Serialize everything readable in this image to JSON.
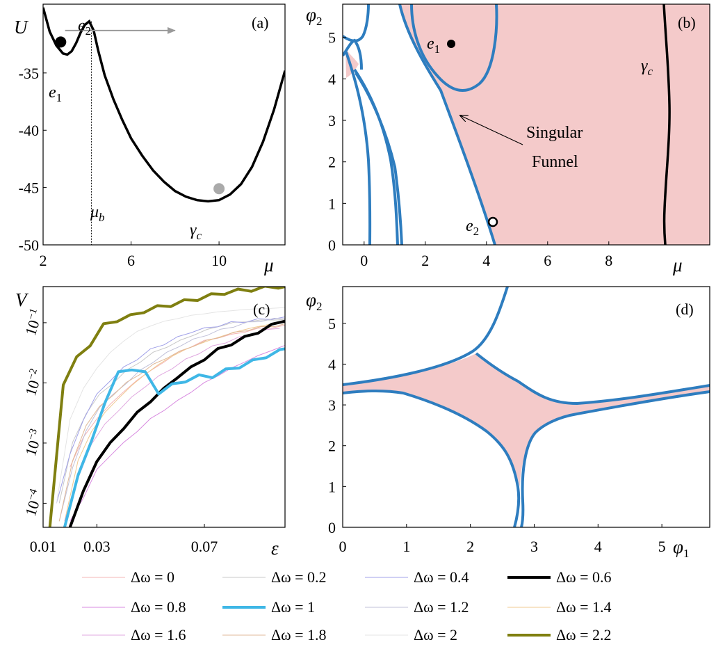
{
  "figure": {
    "panels": [
      "(a)",
      "(b)",
      "(c)",
      "(d)"
    ]
  },
  "chart_data": [
    {
      "panel": "(a)",
      "type": "line",
      "title": "",
      "xlabel": "μ",
      "ylabel": "U",
      "xlim": [
        2,
        13
      ],
      "ylim": [
        -50,
        -29
      ],
      "xticks": [
        "2",
        "6",
        "10"
      ],
      "yticks": [
        "-35",
        "-40",
        "-45",
        "-50"
      ],
      "series": [
        {
          "name": "U(μ)",
          "color": "#000000",
          "x": [
            2.0,
            2.3,
            2.6,
            2.9,
            3.1,
            3.3,
            3.5,
            3.7,
            3.9,
            4.1,
            4.3,
            4.5,
            4.8,
            5.2,
            5.6,
            6.0,
            6.5,
            7.0,
            7.5,
            8.0,
            8.5,
            9.0,
            9.5,
            10.0,
            10.5,
            11.0,
            11.5,
            12.0,
            12.5,
            13.0
          ],
          "y": [
            -29.3,
            -31.4,
            -32.6,
            -33.3,
            -33.4,
            -33.1,
            -32.4,
            -31.5,
            -30.8,
            -30.5,
            -31.3,
            -33.0,
            -35.2,
            -37.3,
            -39.1,
            -40.7,
            -42.2,
            -43.5,
            -44.5,
            -45.3,
            -45.8,
            -46.1,
            -46.2,
            -46.1,
            -45.6,
            -44.7,
            -43.2,
            -41.0,
            -38.2,
            -34.8
          ]
        }
      ],
      "markers": [
        {
          "name": "e1-point",
          "label": "e",
          "subscript": "1",
          "x": 2.8,
          "y": -32.3,
          "color": "#000000"
        },
        {
          "name": "e2-label",
          "label": "e",
          "subscript": "2",
          "x": 4.2,
          "y": -30.5
        },
        {
          "name": "gamma-c-point",
          "label": "γ",
          "subscript": "c",
          "x": 10.0,
          "y": -45.1,
          "color": "#aaaaaa"
        }
      ],
      "barrier": {
        "label": "μ",
        "subscript": "b",
        "x": 4.2
      },
      "arrow": {
        "x_from": 3.0,
        "x_to": 8.0,
        "y": -31.3,
        "color": "#999999"
      }
    },
    {
      "panel": "(b)",
      "type": "contour",
      "title": "",
      "xlabel": "μ",
      "ylabel": "φ2",
      "xlim": [
        -0.7,
        11.3
      ],
      "ylim": [
        0,
        5.8
      ],
      "xticks": [
        "0",
        "2",
        "4",
        "6",
        "8"
      ],
      "yticks": [
        "0",
        "1",
        "2",
        "3",
        "4",
        "5"
      ],
      "fill_color": "#f4caca",
      "line_color": "#2e7dbf",
      "annotation": {
        "line1": "Singular",
        "line2": "Funnel",
        "arrow_to": [
          3.2,
          3.2
        ]
      },
      "points": [
        {
          "label": "e",
          "subscript": "1",
          "x": 2.9,
          "y": 5.25,
          "style": "filled"
        },
        {
          "label": "e",
          "subscript": "2",
          "x": 4.3,
          "y": 0.6,
          "style": "open"
        }
      ],
      "curve_label": {
        "label": "γ",
        "subscript": "c",
        "x": 10.0
      }
    },
    {
      "panel": "(c)",
      "type": "line",
      "title": "",
      "xlabel": "ε",
      "ylabel": "V",
      "xscale": "linear",
      "yscale": "log",
      "xlim": [
        0.01,
        0.1
      ],
      "ylim_exp": [
        -4.4,
        -0.4
      ],
      "xticks": [
        "0.01",
        "0.03",
        "0.07"
      ],
      "yticks": [
        {
          "base": "10",
          "exp": "−1",
          "value": -1
        },
        {
          "base": "10",
          "exp": "−2",
          "value": -2
        },
        {
          "base": "10",
          "exp": "−3",
          "value": -3
        },
        {
          "base": "10",
          "exp": "−4",
          "value": -4
        }
      ],
      "x_grid": [
        0.015,
        0.02,
        0.025,
        0.03,
        0.035,
        0.04,
        0.045,
        0.05,
        0.055,
        0.06,
        0.065,
        0.07,
        0.075,
        0.08,
        0.085,
        0.09,
        0.095,
        0.1
      ],
      "series": [
        {
          "name": "Δω = 0",
          "color": "#f4b4b4",
          "width": 1,
          "start": 0.02,
          "y": [
            -3.4,
            -2.9,
            -2.6,
            -2.35,
            -2.15,
            -1.95,
            -1.8,
            -1.65,
            -1.5,
            -1.4,
            -1.3,
            -1.25,
            -1.2,
            -1.15,
            -1.1,
            -1.08,
            -1.05
          ]
        },
        {
          "name": "Δω = 0.2",
          "color": "#c8c8c8",
          "width": 1,
          "start": 0.016,
          "y": [
            -4.0,
            -3.0,
            -2.5,
            -2.2,
            -2.0,
            -1.8,
            -1.65,
            -1.5,
            -1.4,
            -1.3,
            -1.2,
            -1.12,
            -1.05,
            -1.0,
            -0.98,
            -0.96,
            -0.95,
            -0.95
          ]
        },
        {
          "name": "Δω = 0.4",
          "color": "#a0a0e8",
          "width": 1,
          "start": 0.015,
          "y": [
            -4.0,
            -3.2,
            -2.6,
            -2.2,
            -1.95,
            -1.75,
            -1.6,
            -1.45,
            -1.35,
            -1.25,
            -1.15,
            -1.1,
            -1.05,
            -1.0,
            -0.98,
            -0.95,
            -0.93,
            -0.92
          ]
        },
        {
          "name": "Δω = 0.6",
          "color": "#000000",
          "width": 4,
          "start": 0.02,
          "y": [
            -4.4,
            -3.8,
            -3.3,
            -3.0,
            -2.75,
            -2.5,
            -2.3,
            -2.1,
            -1.9,
            -1.75,
            -1.6,
            -1.45,
            -1.35,
            -1.25,
            -1.15,
            -1.05,
            -0.95
          ]
        },
        {
          "name": "Δω = 0.8",
          "color": "#d88ae0",
          "width": 1,
          "start": 0.02,
          "y": [
            -4.3,
            -3.9,
            -3.45,
            -3.2,
            -3.0,
            -2.8,
            -2.6,
            -2.45,
            -2.3,
            -2.15,
            -2.0,
            -1.88,
            -1.76,
            -1.65,
            -1.55,
            -1.46,
            -1.38
          ]
        },
        {
          "name": "Δω = 1",
          "color": "#3fb7e6",
          "width": 4,
          "start": 0.018,
          "y": [
            -4.4,
            -3.5,
            -3.0,
            -2.3,
            -1.85,
            -1.75,
            -1.85,
            -2.15,
            -2.05,
            -1.95,
            -1.9,
            -1.88,
            -1.8,
            -1.72,
            -1.65,
            -1.55,
            -1.48,
            -1.38
          ]
        },
        {
          "name": "Δω = 1.2",
          "color": "#c0c0d8",
          "width": 1,
          "start": 0.016,
          "y": [
            -4.3,
            -3.4,
            -2.8,
            -2.4,
            -2.2,
            -2.0,
            -1.8,
            -1.65,
            -1.5,
            -1.38,
            -1.28,
            -1.2,
            -1.12,
            -1.06,
            -1.0,
            -0.97,
            -0.94,
            -0.92
          ]
        },
        {
          "name": "Δω = 1.4",
          "color": "#f0c890",
          "width": 1,
          "start": 0.018,
          "y": [
            -4.3,
            -3.3,
            -2.8,
            -2.5,
            -2.25,
            -2.05,
            -1.85,
            -1.7,
            -1.55,
            -1.45,
            -1.35,
            -1.28,
            -1.2,
            -1.14,
            -1.08,
            -1.04,
            -1.0
          ]
        },
        {
          "name": "Δω = 1.6",
          "color": "#e0a8e0",
          "width": 1,
          "start": 0.018,
          "y": [
            -4.3,
            -3.6,
            -3.0,
            -2.7,
            -2.45,
            -2.25,
            -2.05,
            -1.9,
            -1.75,
            -1.62,
            -1.5,
            -1.4,
            -1.32,
            -1.25,
            -1.18,
            -1.13,
            -1.08
          ]
        },
        {
          "name": "Δω = 1.8",
          "color": "#e0b898",
          "width": 1,
          "start": 0.016,
          "y": [
            -4.3,
            -3.3,
            -2.7,
            -2.4,
            -2.2,
            -2.0,
            -1.85,
            -1.7,
            -1.58,
            -1.48,
            -1.38,
            -1.3,
            -1.23,
            -1.17,
            -1.12,
            -1.08,
            -1.05,
            -1.02
          ]
        },
        {
          "name": "Δω = 2",
          "color": "#e4e4e4",
          "width": 1,
          "start": 0.015,
          "y": [
            -4.0,
            -2.6,
            -2.1,
            -1.75,
            -1.5,
            -1.3,
            -1.15,
            -1.05,
            -0.98,
            -0.93,
            -0.88,
            -0.85,
            -0.82,
            -0.8,
            -0.78,
            -0.77,
            -0.76,
            -0.75
          ]
        },
        {
          "name": "Δω = 2.2",
          "color": "#7f7f10",
          "width": 4,
          "start": 0.0125,
          "y": [
            -4.4,
            -2.0,
            -1.6,
            -1.35,
            -1.05,
            -0.95,
            -0.9,
            -0.8,
            -0.75,
            -0.7,
            -0.65,
            -0.6,
            -0.55,
            -0.5,
            -0.47,
            -0.45,
            -0.42,
            -0.4,
            -0.4
          ]
        }
      ]
    },
    {
      "panel": "(d)",
      "type": "contour",
      "title": "",
      "xlabel": "φ1",
      "ylabel": "φ2",
      "xlim": [
        0,
        5.75
      ],
      "ylim": [
        0,
        5.9
      ],
      "xticks": [
        "0",
        "1",
        "2",
        "3",
        "4",
        "5"
      ],
      "yticks": [
        "0",
        "1",
        "2",
        "3",
        "4",
        "5"
      ],
      "fill_color": "#f4caca",
      "line_color": "#2e7dbf"
    }
  ],
  "legend": {
    "entries": [
      {
        "label": "Δω = 0",
        "color": "#f4b4b4",
        "width": 1
      },
      {
        "label": "Δω = 0.2",
        "color": "#c8c8c8",
        "width": 1
      },
      {
        "label": "Δω = 0.4",
        "color": "#a0a0e8",
        "width": 1
      },
      {
        "label": "Δω = 0.6",
        "color": "#000000",
        "width": 4
      },
      {
        "label": "Δω = 0.8",
        "color": "#d88ae0",
        "width": 1
      },
      {
        "label": "Δω = 1",
        "color": "#3fb7e6",
        "width": 4
      },
      {
        "label": "Δω = 1.2",
        "color": "#c0c0d8",
        "width": 1
      },
      {
        "label": "Δω = 1.4",
        "color": "#f0c890",
        "width": 1
      },
      {
        "label": "Δω = 1.6",
        "color": "#e0a8e0",
        "width": 1
      },
      {
        "label": "Δω = 1.8",
        "color": "#e0b898",
        "width": 1
      },
      {
        "label": "Δω = 2",
        "color": "#e4e4e4",
        "width": 1
      },
      {
        "label": "Δω = 2.2",
        "color": "#7f7f10",
        "width": 4
      }
    ]
  }
}
